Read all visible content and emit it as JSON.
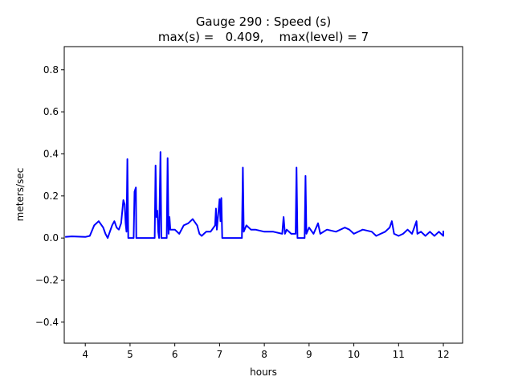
{
  "chart_data": {
    "type": "line",
    "title": "Gauge 290 : Speed (s)",
    "subtitle": "max(s) =   0.409,    max(level) = 7",
    "xlabel": "hours",
    "ylabel": "meters/sec",
    "xlim": [
      3.53,
      12.43
    ],
    "ylim": [
      -0.5,
      0.91
    ],
    "xticks": [
      4,
      5,
      6,
      7,
      8,
      9,
      10,
      11,
      12
    ],
    "xtick_labels": [
      "4",
      "5",
      "6",
      "7",
      "8",
      "9",
      "10",
      "11",
      "12"
    ],
    "yticks": [
      -0.4,
      -0.2,
      0.0,
      0.2,
      0.4,
      0.6,
      0.8
    ],
    "ytick_labels": [
      "−0.4",
      "−0.2",
      "0.0",
      "0.2",
      "0.4",
      "0.6",
      "0.8"
    ],
    "grid": false,
    "series": [
      {
        "name": "speed",
        "color": "#0000ff",
        "x": [
          3.55,
          3.7,
          4.0,
          4.1,
          4.2,
          4.3,
          4.4,
          4.45,
          4.5,
          4.55,
          4.6,
          4.65,
          4.7,
          4.75,
          4.8,
          4.85,
          4.88,
          4.9,
          4.92,
          4.94,
          4.96,
          5.08,
          5.1,
          5.13,
          5.14,
          5.55,
          5.57,
          5.59,
          5.61,
          5.63,
          5.65,
          5.68,
          5.7,
          5.82,
          5.84,
          5.86,
          5.88,
          5.9,
          6.0,
          6.1,
          6.2,
          6.3,
          6.4,
          6.5,
          6.55,
          6.6,
          6.7,
          6.8,
          6.9,
          6.92,
          6.94,
          7.0,
          7.02,
          7.04,
          7.06,
          7.5,
          7.52,
          7.54,
          7.6,
          7.7,
          7.8,
          8.0,
          8.2,
          8.4,
          8.43,
          8.46,
          8.5,
          8.6,
          8.7,
          8.72,
          8.74,
          8.9,
          8.92,
          8.94,
          9.0,
          9.1,
          9.2,
          9.25,
          9.4,
          9.6,
          9.8,
          9.9,
          10.0,
          10.2,
          10.4,
          10.5,
          10.6,
          10.7,
          10.8,
          10.85,
          10.9,
          11.0,
          11.1,
          11.2,
          11.3,
          11.4,
          11.42,
          11.5,
          11.6,
          11.7,
          11.8,
          11.9,
          12.0,
          12.0
        ],
        "y": [
          0.005,
          0.008,
          0.005,
          0.01,
          0.06,
          0.08,
          0.05,
          0.02,
          0.0,
          0.03,
          0.06,
          0.08,
          0.05,
          0.04,
          0.07,
          0.18,
          0.16,
          0.07,
          0.03,
          0.375,
          0.0,
          0.0,
          0.22,
          0.24,
          0.0,
          0.0,
          0.345,
          0.1,
          0.13,
          0.03,
          0.0,
          0.409,
          0.0,
          0.0,
          0.38,
          0.02,
          0.1,
          0.04,
          0.04,
          0.02,
          0.06,
          0.07,
          0.09,
          0.06,
          0.02,
          0.01,
          0.03,
          0.03,
          0.06,
          0.14,
          0.04,
          0.185,
          0.08,
          0.19,
          0.0,
          0.0,
          0.335,
          0.03,
          0.06,
          0.04,
          0.04,
          0.03,
          0.03,
          0.02,
          0.1,
          0.02,
          0.04,
          0.02,
          0.02,
          0.335,
          0.0,
          0.0,
          0.295,
          0.02,
          0.05,
          0.02,
          0.07,
          0.02,
          0.04,
          0.03,
          0.05,
          0.04,
          0.02,
          0.04,
          0.03,
          0.01,
          0.02,
          0.03,
          0.05,
          0.08,
          0.02,
          0.01,
          0.02,
          0.04,
          0.02,
          0.08,
          0.02,
          0.03,
          0.01,
          0.03,
          0.01,
          0.03,
          0.01,
          0.035
        ]
      }
    ]
  }
}
